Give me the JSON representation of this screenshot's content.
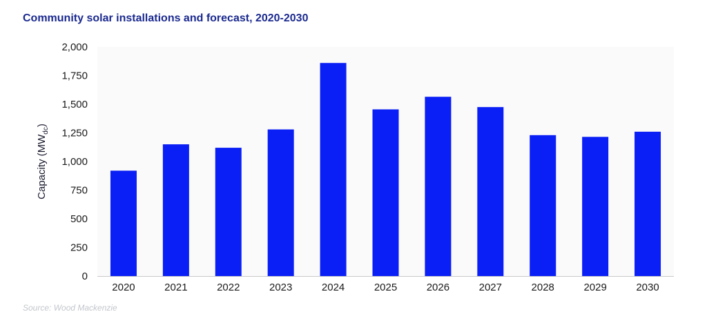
{
  "chart_data": {
    "type": "bar",
    "title": "Community solar installations and forecast, 2020-2030",
    "ylabel_main": "Capacity (MW",
    "ylabel_sub": "dc",
    "ylabel_close": ")",
    "xlabel": "",
    "categories": [
      "2020",
      "2021",
      "2022",
      "2023",
      "2024",
      "2025",
      "2026",
      "2027",
      "2028",
      "2029",
      "2030"
    ],
    "series": [
      {
        "values": [
          920,
          1150,
          1120,
          1280,
          1860,
          1455,
          1565,
          1475,
          1230,
          1215,
          1260
        ],
        "color": "#0a1ff5"
      }
    ],
    "ylim": [
      0,
      2000
    ],
    "yticks": [
      0,
      250,
      500,
      750,
      1000,
      1250,
      1500,
      1750,
      2000
    ],
    "ytick_labels": [
      "0",
      "250",
      "500",
      "750",
      "1,000",
      "1,250",
      "1,500",
      "1,750",
      "2,000"
    ],
    "grid": false,
    "legend": "none"
  },
  "source": "Source: Wood Mackenzie"
}
